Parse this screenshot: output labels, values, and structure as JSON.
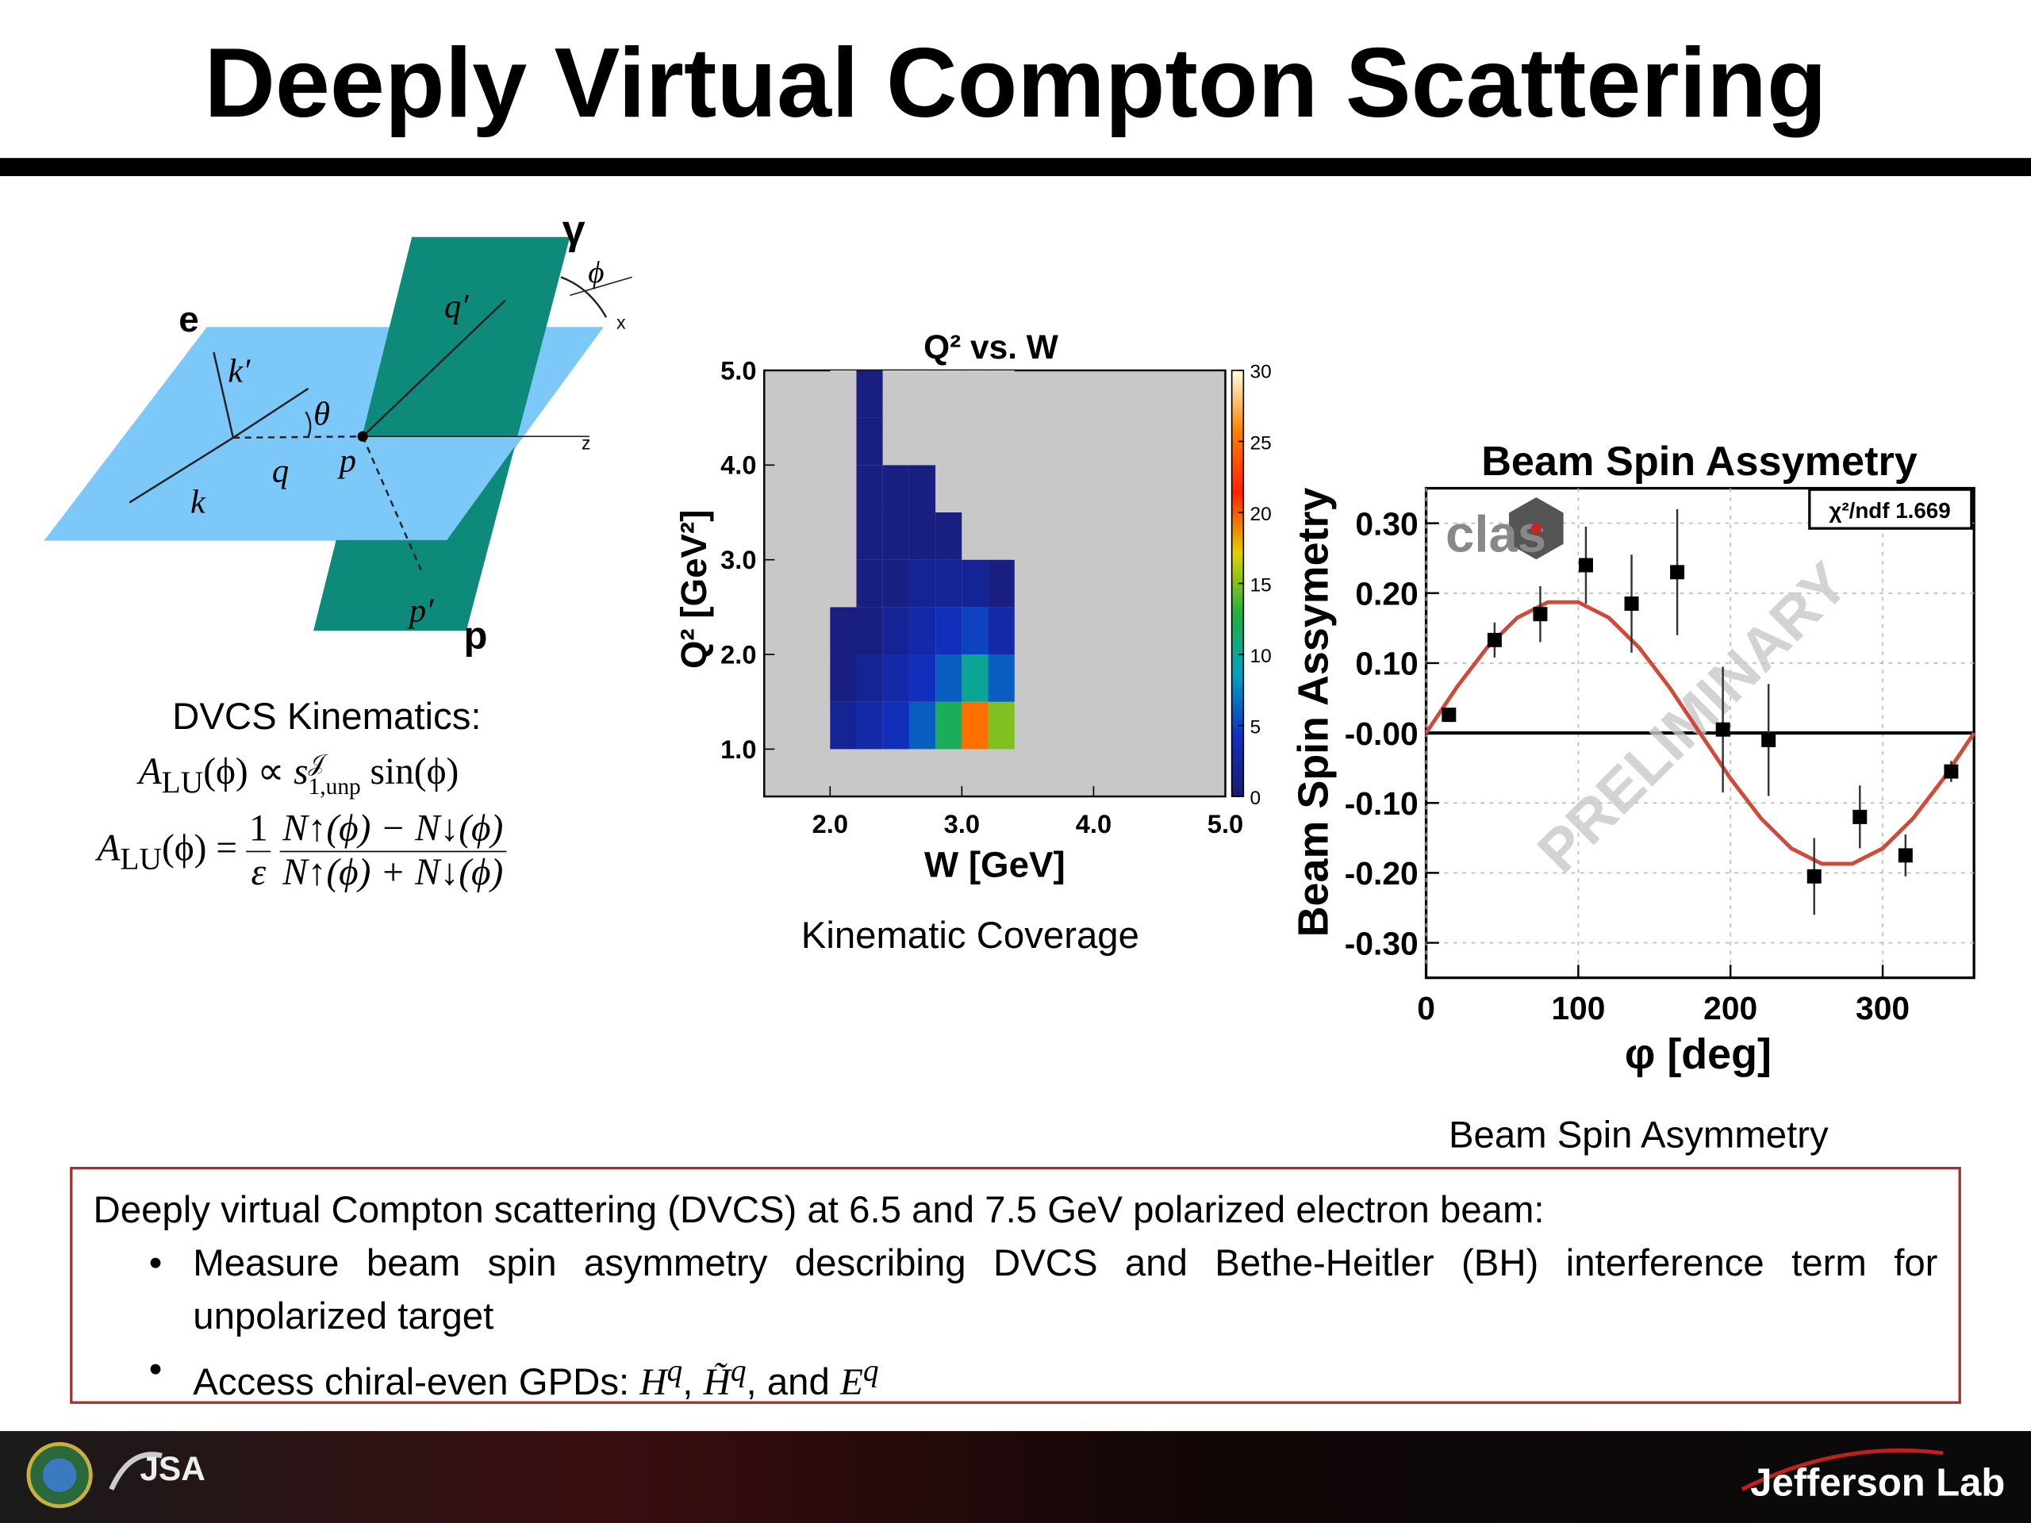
{
  "header": {
    "title": "Deeply Virtual Compton Scattering"
  },
  "diagram": {
    "labels": [
      "e",
      "k′",
      "θ",
      "q",
      "k",
      "p",
      "q′",
      "γ",
      "ϕ",
      "x",
      "z",
      "p′",
      "p"
    ]
  },
  "kinematics": {
    "heading": "DVCS Kinematics:",
    "eq1": [
      "A",
      "LU",
      "(ϕ) ∝ ",
      "s",
      "𝒥",
      "1,unp",
      " sin(ϕ)"
    ],
    "eq2": [
      "A",
      "LU",
      "(ϕ) = ",
      "1",
      "ε",
      "N↑(ϕ) − N↓(ϕ)",
      "N↑(ϕ) + N↓(ϕ)"
    ]
  },
  "chart_data": [
    {
      "type": "heatmap",
      "title": "Q² vs. W",
      "x_label": "W [GeV]",
      "y_label": "Q² [GeV²]",
      "xbins": [
        2.0,
        2.2,
        2.4,
        2.6,
        2.8,
        3.0,
        3.2,
        3.4
      ],
      "ybins": [
        1.0,
        1.5,
        2.0,
        2.5,
        3.0,
        3.5,
        4.0,
        4.5,
        5.0
      ],
      "values": [
        [
          2,
          3,
          4,
          6,
          12,
          25,
          15
        ],
        [
          1,
          2,
          3,
          4,
          6,
          10,
          6
        ],
        [
          1,
          1,
          2,
          3,
          4,
          5,
          3
        ],
        [
          0,
          1,
          1,
          2,
          2,
          2,
          1
        ],
        [
          0,
          1,
          1,
          1,
          1,
          0,
          0
        ],
        [
          0,
          1,
          1,
          1,
          0,
          0,
          0
        ],
        [
          0,
          1,
          0,
          0,
          0,
          0,
          0
        ],
        [
          0,
          1,
          0,
          0,
          0,
          0,
          0
        ]
      ],
      "background": "#c8c8c8",
      "colors": [
        "#1a1a6e",
        "#1030c0",
        "#00a0c0",
        "#20b040",
        "#e0d000",
        "#ff2000",
        "#ff8000",
        "#ffffe0"
      ],
      "zlim": [
        0,
        30
      ],
      "zticks": [
        0,
        5,
        10,
        15,
        20,
        25,
        30
      ],
      "xlim": [
        1.5,
        5.0
      ],
      "xticks": [
        {
          "value": 2,
          "label": "2.0"
        },
        {
          "value": 3,
          "label": "3.0"
        },
        {
          "value": 4,
          "label": "4.0"
        },
        {
          "value": 5,
          "label": "5.0"
        }
      ],
      "ylim": [
        0.5,
        5.0
      ],
      "yticks": [
        {
          "value": 1,
          "label": "1.0"
        },
        {
          "value": 2,
          "label": "2.0"
        },
        {
          "value": 3,
          "label": "3.0"
        },
        {
          "value": 4,
          "label": "4.0"
        },
        {
          "value": 5,
          "label": "5.0"
        }
      ]
    },
    {
      "type": "scatter",
      "title": "Beam Spin Assymetry",
      "x_label": "φ [deg]",
      "y_label": "Beam Spin Assymetry",
      "x": [
        15,
        45,
        75,
        105,
        135,
        165,
        195,
        225,
        255,
        285,
        315,
        345
      ],
      "values": [
        0.026,
        0.133,
        0.17,
        0.24,
        0.185,
        0.23,
        0.005,
        -0.01,
        -0.205,
        -0.12,
        -0.175,
        -0.055
      ],
      "errors": [
        0.01,
        0.025,
        0.04,
        0.055,
        0.07,
        0.09,
        0.09,
        0.08,
        0.055,
        0.045,
        0.03,
        0.015
      ],
      "color": "#000000",
      "fit": {
        "x": [
          0,
          20,
          40,
          60,
          80,
          100,
          120,
          140,
          160,
          180,
          200,
          220,
          240,
          260,
          280,
          300,
          320,
          340,
          360
        ],
        "values": [
          0,
          0.065,
          0.122,
          0.165,
          0.187,
          0.187,
          0.165,
          0.122,
          0.065,
          0,
          -0.065,
          -0.122,
          -0.165,
          -0.187,
          -0.187,
          -0.165,
          -0.122,
          -0.065,
          0
        ],
        "color": "#d04a3a"
      },
      "annotation": "χ²/ndf  1.669",
      "watermark": "PRELIMINARY",
      "logo": "clas",
      "grid": true,
      "xlim": [
        0,
        360
      ],
      "xticks": [
        0,
        100,
        200,
        300
      ],
      "ylim": [
        -0.35,
        0.35
      ],
      "yticks": [
        {
          "value": 0.3,
          "label": "0.30"
        },
        {
          "value": 0.2,
          "label": "0.20"
        },
        {
          "value": 0.1,
          "label": "0.10"
        },
        {
          "value": 0,
          "label": "-0.00"
        },
        {
          "value": -0.1,
          "label": "-0.10"
        },
        {
          "value": -0.2,
          "label": "-0.20"
        },
        {
          "value": -0.3,
          "label": "-0.30"
        }
      ]
    }
  ],
  "captions": [
    "Kinematic Coverage",
    "Beam Spin Asymmetry"
  ],
  "box": {
    "intro": "Deeply virtual Compton scattering (DVCS) at 6.5 and 7.5 GeV polarized electron beam:",
    "bullets": [
      "Measure beam spin asymmetry describing DVCS and Bethe-Heitler (BH) interference term for unpolarized target",
      [
        "Access chiral-even GPDs: ",
        "H",
        "q",
        ", ",
        "H̃",
        "q",
        ", and ",
        "E",
        "q"
      ]
    ]
  },
  "footer": {
    "jsa": "JSA",
    "lab": "Jefferson Lab"
  }
}
